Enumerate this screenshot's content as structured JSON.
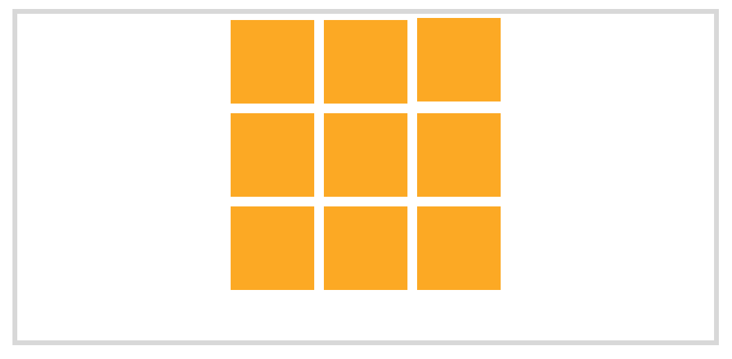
{
  "colors": {
    "frame_border": "#d8d8d8",
    "background": "#ffffff",
    "tile": "#fca924"
  },
  "grid": {
    "rows": 3,
    "columns": 3,
    "tile_count": 9
  }
}
